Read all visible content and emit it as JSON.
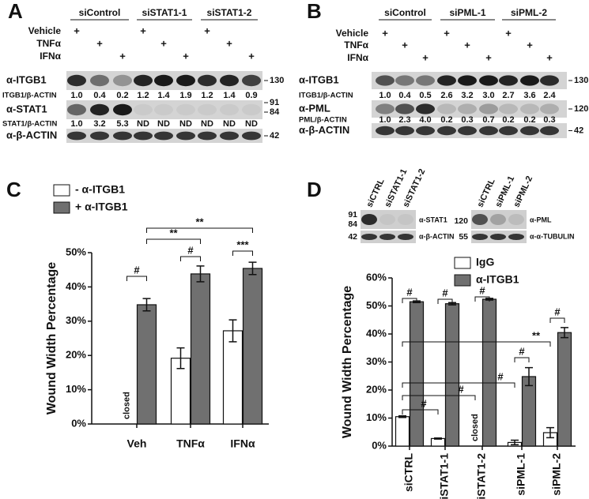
{
  "blot_a": {
    "panel": "A",
    "groups": [
      "siControl",
      "siSTAT1-1",
      "siSTAT1-2"
    ],
    "conditions": [
      "Vehicle",
      "TNFα",
      "IFNα"
    ],
    "plus": "+",
    "bands": [
      {
        "label": "α-ITGB1",
        "mw": [
          "130"
        ]
      },
      {
        "label": "α-STAT1",
        "mw": [
          "91",
          "84"
        ]
      },
      {
        "label": "α-β-ACTIN",
        "mw": [
          "42"
        ]
      }
    ],
    "quant": [
      {
        "label": "ITGB1/β-ACTIN",
        "values": [
          "1.0",
          "0.4",
          "0.2",
          "1.2",
          "1.4",
          "1.9",
          "1.2",
          "1.4",
          "0.9"
        ]
      },
      {
        "label": "STAT1/β-ACTIN",
        "values": [
          "1.0",
          "3.2",
          "5.3",
          "ND",
          "ND",
          "ND",
          "ND",
          "ND",
          "ND"
        ]
      }
    ]
  },
  "blot_b": {
    "panel": "B",
    "groups": [
      "siControl",
      "siPML-1",
      "siPML-2"
    ],
    "conditions": [
      "Vehicle",
      "TNFα",
      "IFNα"
    ],
    "plus": "+",
    "bands": [
      {
        "label": "α-ITGB1",
        "mw": [
          "130"
        ]
      },
      {
        "label": "α-PML",
        "mw": [
          "120"
        ]
      },
      {
        "label": "α-β-ACTIN",
        "mw": [
          "42"
        ]
      }
    ],
    "quant": [
      {
        "label": "ITGB1/β-ACTIN",
        "values": [
          "1.0",
          "0.4",
          "0.5",
          "2.6",
          "3.2",
          "3.0",
          "2.7",
          "3.6",
          "2.4"
        ]
      },
      {
        "label": "PML/β-ACTIN",
        "values": [
          "1.0",
          "2.3",
          "4.0",
          "0.2",
          "0.3",
          "0.7",
          "0.2",
          "0.2",
          "0.3"
        ]
      }
    ]
  },
  "blot_d": [
    {
      "lanes": [
        "siCTRL",
        "siSTAT1-1",
        "siSTAT1-2"
      ],
      "mw": [
        "91",
        "84",
        "42"
      ],
      "bands": [
        "α-STAT1",
        "α-β-ACTIN"
      ]
    },
    {
      "lanes": [
        "siCTRL",
        "siPML-1",
        "siPML-2"
      ],
      "mw": [
        "120",
        "55"
      ],
      "bands": [
        "α-PML",
        "α-α-TUBULIN"
      ]
    }
  ],
  "chart_data": [
    {
      "type": "bar",
      "panel": "C",
      "y_label": "Wound Width Percentage",
      "categories": [
        "Veh",
        "TNFα",
        "IFNα"
      ],
      "series": [
        {
          "name": "- α-ITGB1",
          "color": "#ffffff",
          "values": [
            null,
            19.2,
            27.2
          ],
          "errors": [
            null,
            3.0,
            3.2
          ]
        },
        {
          "name": "+ α-ITGB1",
          "color": "#707070",
          "values": [
            34.8,
            43.8,
            45.4
          ],
          "errors": [
            1.8,
            2.3,
            1.8
          ]
        }
      ],
      "closed_label": "closed",
      "ylim": [
        0,
        50
      ],
      "yticks": [
        {
          "value": 0,
          "label": "0%"
        },
        {
          "value": 10,
          "label": "10%"
        },
        {
          "value": 20,
          "label": "20%"
        },
        {
          "value": 30,
          "label": "30%"
        },
        {
          "value": 40,
          "label": "40%"
        },
        {
          "value": 50,
          "label": "50%"
        }
      ],
      "annotations": [
        "#",
        "**",
        "**",
        "#",
        "***"
      ]
    },
    {
      "type": "bar",
      "panel": "D",
      "y_label": "Wound Width Percentage",
      "categories": [
        "siCTRL",
        "siSTAT1-1",
        "siSTAT1-2",
        "siPML-1",
        "siPML-2"
      ],
      "series": [
        {
          "name": "IgG",
          "color": "#ffffff",
          "values": [
            10.5,
            2.7,
            null,
            1.3,
            4.8
          ],
          "errors": [
            0.3,
            0.2,
            null,
            0.8,
            1.8
          ]
        },
        {
          "name": "α-ITGB1",
          "color": "#707070",
          "values": [
            51.5,
            50.8,
            52.4,
            24.8,
            40.5
          ],
          "errors": [
            0.3,
            0.4,
            0.3,
            3.2,
            1.8
          ]
        }
      ],
      "closed_label": "closed",
      "ylim": [
        0,
        60
      ],
      "yticks": [
        {
          "value": 0,
          "label": "0%"
        },
        {
          "value": 10,
          "label": "10%"
        },
        {
          "value": 20,
          "label": "20%"
        },
        {
          "value": 30,
          "label": "30%"
        },
        {
          "value": 40,
          "label": "40%"
        },
        {
          "value": 50,
          "label": "50%"
        },
        {
          "value": 60,
          "label": "60%"
        }
      ],
      "annotations": [
        "#",
        "#",
        "#",
        "#",
        "#",
        "#",
        "#",
        "#",
        "**"
      ]
    }
  ]
}
